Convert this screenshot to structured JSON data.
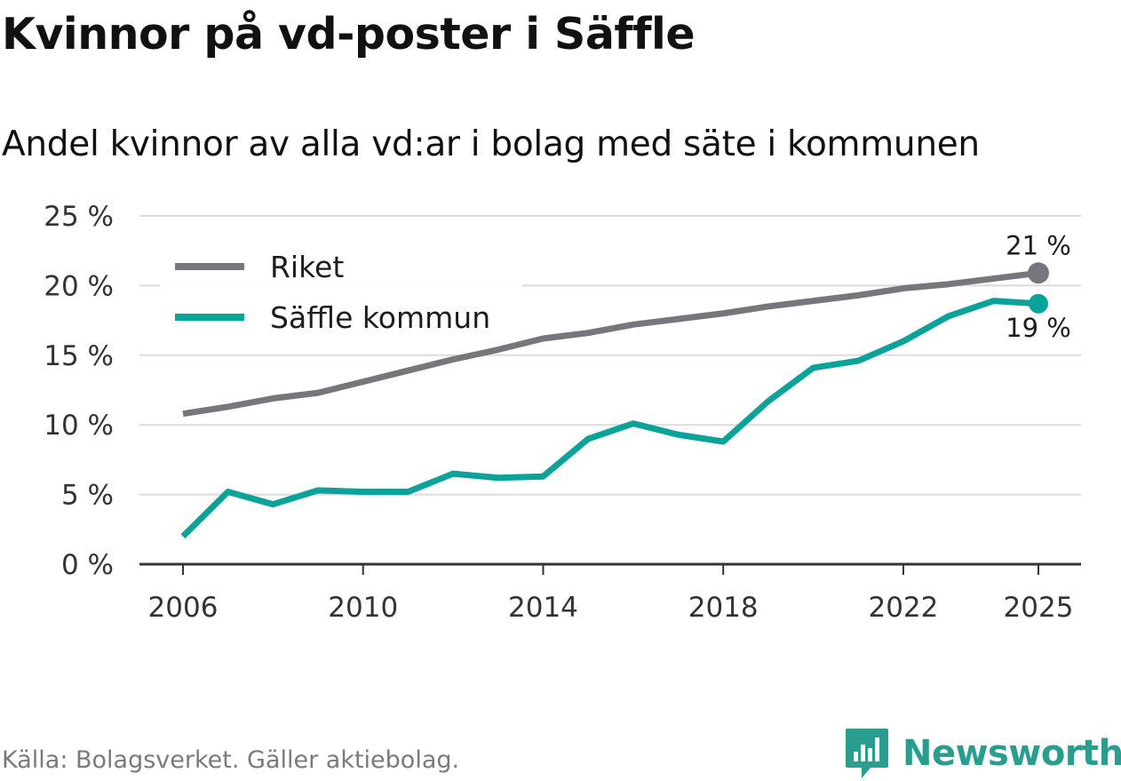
{
  "title": "Kvinnor på vd-poster i Säffle",
  "subtitle": "Andel kvinnor av alla vd:ar i bolag med säte i kommunen",
  "source": "Källa: Bolagsverket. Gäller aktiebolag.",
  "brand": "Newsworthy",
  "colors": {
    "riket": "#77767d",
    "kommun": "#0ba29a",
    "grid": "#dcdcdc",
    "axis": "#333333"
  },
  "chart_data": {
    "type": "line",
    "title": "Kvinnor på vd-poster i Säffle",
    "xlabel": "",
    "ylabel": "",
    "ylim": [
      0,
      25
    ],
    "xlim": [
      2006,
      2025
    ],
    "x": [
      2006,
      2007,
      2008,
      2009,
      2010,
      2011,
      2012,
      2013,
      2014,
      2015,
      2016,
      2017,
      2018,
      2019,
      2020,
      2021,
      2022,
      2023,
      2024,
      2025
    ],
    "x_ticks": [
      "2006",
      "2010",
      "2014",
      "2018",
      "2022",
      "2025"
    ],
    "y_ticks": [
      "0 %",
      "5 %",
      "10 %",
      "15 %",
      "20 %",
      "25 %"
    ],
    "legend_position": "top-left",
    "series": [
      {
        "name": "Riket",
        "key": "riket",
        "values": [
          10.8,
          11.3,
          11.9,
          12.3,
          13.1,
          13.9,
          14.7,
          15.4,
          16.2,
          16.6,
          17.2,
          17.6,
          18.0,
          18.5,
          18.9,
          19.3,
          19.8,
          20.1,
          20.5,
          20.9
        ],
        "end_label": "21 %"
      },
      {
        "name": "Säffle kommun",
        "key": "kommun",
        "values": [
          2.0,
          5.2,
          4.3,
          5.3,
          5.2,
          5.2,
          6.5,
          6.2,
          6.3,
          9.0,
          10.1,
          9.3,
          8.8,
          11.7,
          14.1,
          14.6,
          16.0,
          17.8,
          18.9,
          18.7
        ],
        "end_label": "19 %"
      }
    ]
  }
}
